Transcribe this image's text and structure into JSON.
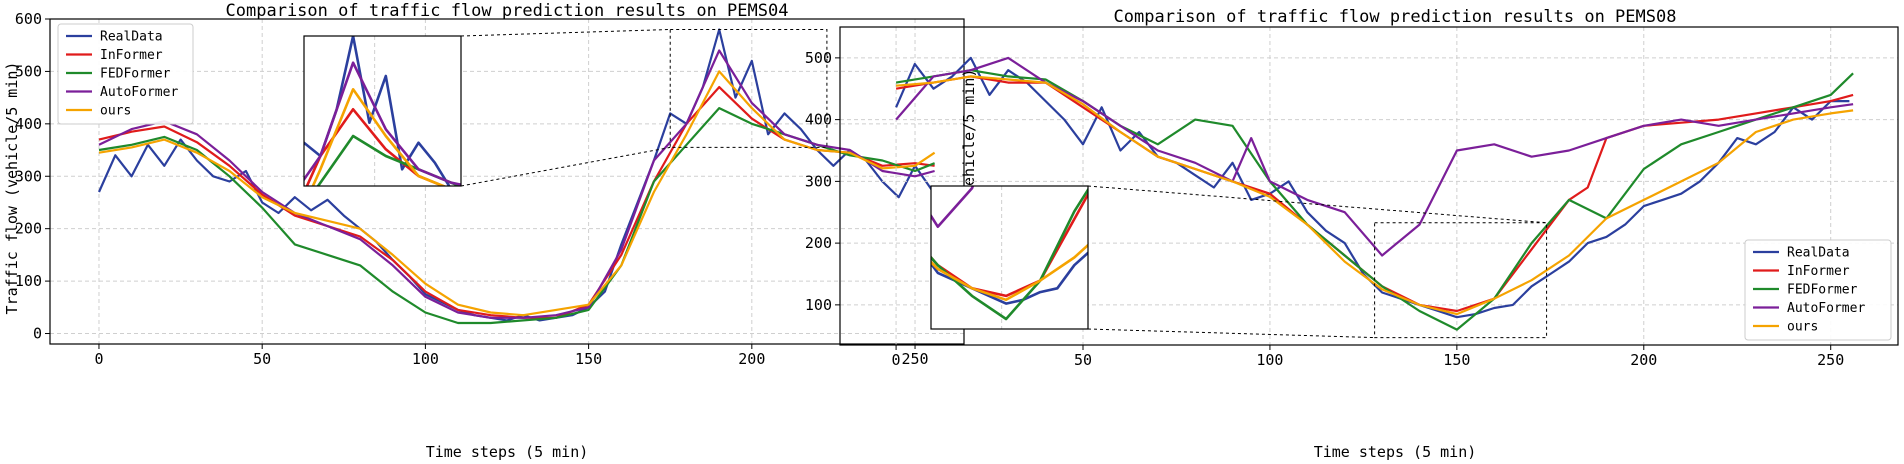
{
  "colors": {
    "RealData": "#2b3f9e",
    "InFormer": "#e01b1b",
    "FEDFormer": "#1f8a2b",
    "AutoFormer": "#7b1f99",
    "ours": "#f5a300"
  },
  "chart_data": [
    {
      "type": "line",
      "title": "Comparison of traffic flow prediction results on PEMS04",
      "xlabel": "Time steps (5 min)",
      "ylabel": "Traffic flow (vehicle/5 min)",
      "xlim": [
        -15,
        265
      ],
      "ylim": [
        -20,
        600
      ],
      "xticks": [
        0,
        50,
        100,
        150,
        200,
        250
      ],
      "yticks": [
        0,
        100,
        200,
        300,
        400,
        500,
        600
      ],
      "grid": true,
      "legend": {
        "position": "top-left",
        "entries": [
          "RealData",
          "InFormer",
          "FEDFormer",
          "AutoFormer",
          "ours"
        ]
      },
      "inset": {
        "source_x": [
          175,
          223
        ],
        "source_y": [
          355,
          580
        ]
      },
      "series": [
        {
          "name": "RealData",
          "x": [
            0,
            5,
            10,
            15,
            20,
            25,
            30,
            35,
            40,
            45,
            50,
            55,
            60,
            65,
            70,
            75,
            80,
            85,
            90,
            95,
            100,
            105,
            110,
            115,
            120,
            125,
            130,
            135,
            140,
            145,
            150,
            155,
            160,
            165,
            170,
            175,
            180,
            185,
            190,
            195,
            200,
            205,
            210,
            215,
            220,
            225,
            230,
            235,
            240,
            245,
            250,
            255
          ],
          "y": [
            270,
            340,
            300,
            360,
            320,
            370,
            330,
            300,
            290,
            310,
            250,
            230,
            260,
            235,
            255,
            225,
            200,
            175,
            140,
            110,
            75,
            60,
            45,
            35,
            30,
            25,
            35,
            25,
            30,
            35,
            50,
            80,
            170,
            250,
            330,
            420,
            400,
            470,
            580,
            450,
            520,
            380,
            420,
            390,
            350,
            320,
            350,
            330,
            290,
            260,
            320,
            275
          ]
        },
        {
          "name": "InFormer",
          "x": [
            0,
            10,
            20,
            30,
            40,
            50,
            60,
            70,
            80,
            90,
            100,
            110,
            120,
            130,
            140,
            150,
            160,
            170,
            180,
            190,
            200,
            210,
            220,
            230,
            240,
            250,
            256
          ],
          "y": [
            370,
            385,
            395,
            365,
            320,
            265,
            225,
            205,
            185,
            140,
            80,
            45,
            35,
            30,
            30,
            55,
            150,
            290,
            400,
            470,
            410,
            370,
            350,
            345,
            320,
            325,
            320
          ]
        },
        {
          "name": "FEDFormer",
          "x": [
            0,
            10,
            20,
            30,
            40,
            50,
            60,
            70,
            80,
            90,
            100,
            110,
            120,
            130,
            140,
            150,
            160,
            170,
            180,
            190,
            200,
            210,
            220,
            230,
            240,
            250,
            256
          ],
          "y": [
            350,
            360,
            375,
            350,
            300,
            240,
            170,
            150,
            130,
            80,
            40,
            20,
            20,
            25,
            30,
            45,
            130,
            290,
            360,
            430,
            400,
            380,
            360,
            340,
            330,
            310,
            325
          ]
        },
        {
          "name": "AutoFormer",
          "x": [
            0,
            10,
            20,
            30,
            40,
            50,
            60,
            70,
            80,
            90,
            100,
            110,
            120,
            130,
            140,
            150,
            160,
            170,
            180,
            190,
            200,
            210,
            220,
            230,
            240,
            250,
            256
          ],
          "y": [
            360,
            390,
            405,
            380,
            330,
            270,
            230,
            205,
            180,
            130,
            70,
            40,
            30,
            30,
            35,
            50,
            160,
            330,
            400,
            540,
            440,
            380,
            360,
            350,
            310,
            300,
            310
          ]
        },
        {
          "name": "ours",
          "x": [
            0,
            10,
            20,
            30,
            40,
            50,
            60,
            70,
            80,
            90,
            100,
            110,
            120,
            130,
            140,
            150,
            160,
            170,
            180,
            190,
            200,
            210,
            220,
            230,
            240,
            250,
            256
          ],
          "y": [
            345,
            355,
            370,
            345,
            310,
            260,
            230,
            215,
            200,
            150,
            95,
            55,
            40,
            35,
            45,
            55,
            130,
            270,
            380,
            500,
            430,
            370,
            350,
            345,
            315,
            320,
            345
          ]
        }
      ]
    },
    {
      "type": "line",
      "title": "Comparison of traffic flow prediction results on PEMS08",
      "xlabel": "Time steps (5 min)",
      "ylabel": "Traffic flow (vehicle/5 min)",
      "xlim": [
        -15,
        268
      ],
      "ylim": [
        35,
        550
      ],
      "xticks": [
        0,
        50,
        100,
        150,
        200,
        250
      ],
      "yticks": [
        100,
        200,
        300,
        400,
        500
      ],
      "grid": true,
      "legend": {
        "position": "bottom-right",
        "entries": [
          "RealData",
          "InFormer",
          "FEDFormer",
          "AutoFormer",
          "ours"
        ]
      },
      "inset": {
        "source_x": [
          128,
          174
        ],
        "source_y": [
          47,
          233
        ]
      },
      "series": [
        {
          "name": "RealData",
          "x": [
            0,
            5,
            10,
            15,
            20,
            25,
            30,
            35,
            40,
            45,
            50,
            55,
            60,
            65,
            70,
            75,
            80,
            85,
            90,
            95,
            100,
            105,
            110,
            115,
            120,
            125,
            130,
            135,
            140,
            145,
            150,
            155,
            160,
            165,
            170,
            175,
            180,
            185,
            190,
            195,
            200,
            205,
            210,
            215,
            220,
            225,
            230,
            235,
            240,
            245,
            250,
            255
          ],
          "y": [
            420,
            490,
            450,
            470,
            500,
            440,
            480,
            460,
            430,
            400,
            360,
            420,
            350,
            380,
            340,
            330,
            310,
            290,
            330,
            270,
            280,
            300,
            250,
            220,
            200,
            150,
            120,
            110,
            100,
            90,
            80,
            85,
            95,
            100,
            130,
            150,
            170,
            200,
            210,
            230,
            260,
            270,
            280,
            300,
            330,
            370,
            360,
            380,
            420,
            400,
            430,
            430
          ]
        },
        {
          "name": "InFormer",
          "x": [
            0,
            10,
            20,
            30,
            40,
            50,
            60,
            70,
            80,
            90,
            100,
            110,
            120,
            130,
            140,
            150,
            160,
            170,
            180,
            185,
            190,
            200,
            210,
            220,
            230,
            240,
            250,
            256
          ],
          "y": [
            450,
            460,
            470,
            460,
            460,
            420,
            380,
            340,
            320,
            300,
            280,
            230,
            180,
            130,
            100,
            90,
            110,
            190,
            270,
            290,
            370,
            390,
            395,
            400,
            410,
            420,
            430,
            440
          ]
        },
        {
          "name": "FEDFormer",
          "x": [
            0,
            10,
            20,
            30,
            40,
            50,
            60,
            70,
            80,
            90,
            100,
            110,
            120,
            130,
            140,
            150,
            160,
            170,
            180,
            190,
            200,
            210,
            220,
            230,
            240,
            250,
            256
          ],
          "y": [
            460,
            470,
            480,
            470,
            465,
            430,
            390,
            360,
            400,
            390,
            300,
            230,
            180,
            130,
            90,
            60,
            110,
            200,
            270,
            240,
            320,
            360,
            380,
            400,
            420,
            440,
            475
          ]
        },
        {
          "name": "AutoFormer",
          "x": [
            0,
            10,
            20,
            30,
            40,
            50,
            60,
            70,
            80,
            90,
            95,
            100,
            110,
            120,
            130,
            140,
            150,
            160,
            170,
            180,
            190,
            200,
            210,
            220,
            230,
            240,
            250,
            256
          ],
          "y": [
            400,
            470,
            480,
            500,
            460,
            430,
            390,
            350,
            330,
            300,
            370,
            300,
            270,
            250,
            180,
            230,
            350,
            360,
            340,
            350,
            370,
            390,
            400,
            390,
            400,
            410,
            420,
            425
          ]
        },
        {
          "name": "ours",
          "x": [
            0,
            10,
            20,
            30,
            40,
            50,
            60,
            70,
            80,
            90,
            100,
            110,
            120,
            130,
            140,
            150,
            160,
            170,
            180,
            190,
            200,
            210,
            220,
            230,
            240,
            250,
            256
          ],
          "y": [
            455,
            460,
            470,
            465,
            460,
            425,
            380,
            340,
            320,
            300,
            275,
            230,
            170,
            125,
            100,
            85,
            110,
            140,
            180,
            240,
            270,
            300,
            330,
            380,
            400,
            410,
            415
          ]
        }
      ]
    }
  ]
}
